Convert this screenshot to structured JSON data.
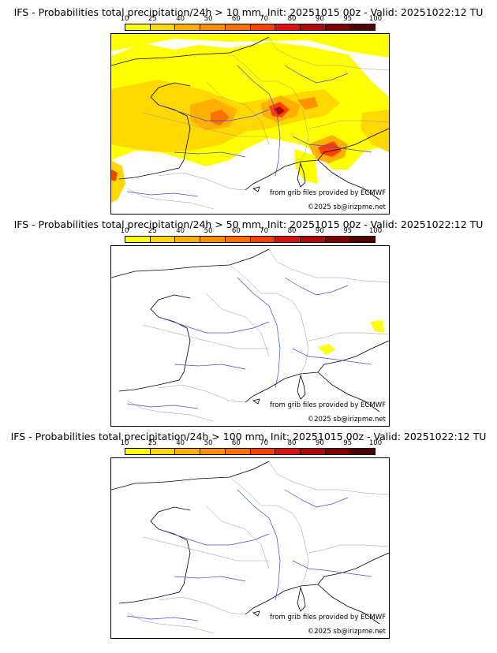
{
  "panels": [
    {
      "title": "IFS - Probabilities total precipitation/24h > 10 mm, Init: 20251015 00z - Valid: 20251022:12 TU",
      "threshold_mm": 10,
      "coverage": "widespread"
    },
    {
      "title": "IFS - Probabilities total precipitation/24h > 50 mm, Init: 20251015 00z - Valid: 20251022:12 TU",
      "threshold_mm": 50,
      "coverage": "small"
    },
    {
      "title": "IFS - Probabilities total precipitation/24h > 100 mm, Init: 20251015 00z - Valid: 20251022:12 TU",
      "threshold_mm": 100,
      "coverage": "none"
    }
  ],
  "colorbar": {
    "ticks": [
      "10",
      "25",
      "40",
      "50",
      "60",
      "70",
      "80",
      "90",
      "95",
      "100"
    ],
    "colors": [
      "#ffff00",
      "#ffd800",
      "#ffb000",
      "#ff9000",
      "#ff7000",
      "#ff4000",
      "#e01010",
      "#b00808",
      "#800000",
      "#500000"
    ]
  },
  "credits": {
    "source": "from grib files provided by ECMWF",
    "copyright": "©2025 sb@irizpme.net"
  },
  "colors": {
    "river": "#3a4fd8",
    "border": "#9a9a9a",
    "coast": "#000000"
  }
}
